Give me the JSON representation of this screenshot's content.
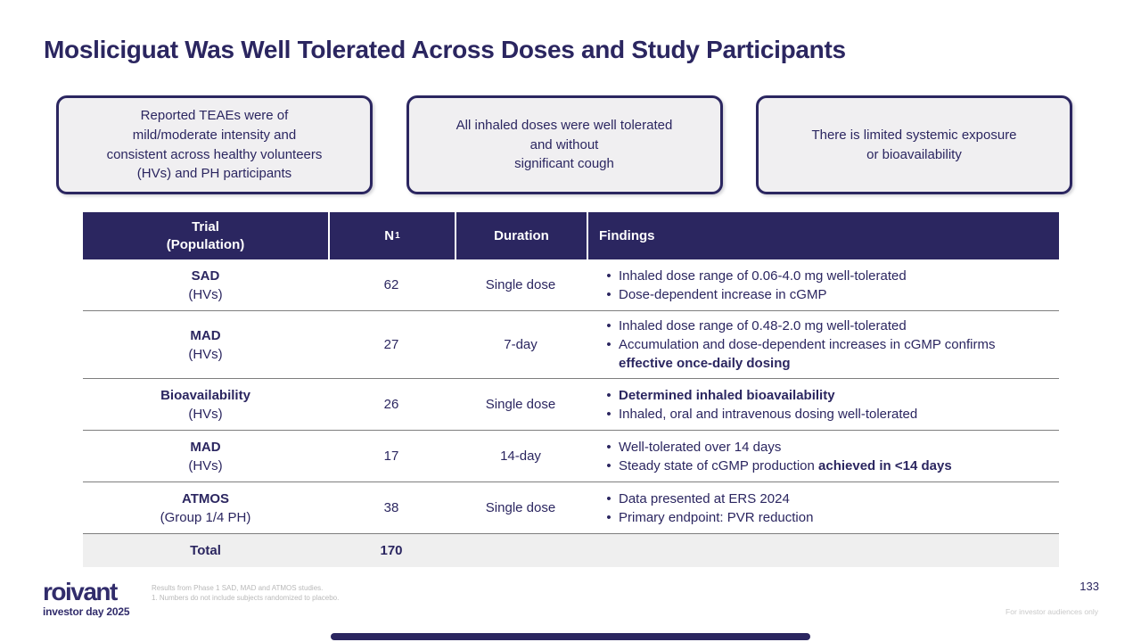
{
  "slide": {
    "title": "Mosliciguat Was Well Tolerated Across Doses and Study Participants",
    "page_number": "133",
    "audience_note": "For investor audiences only"
  },
  "callouts": [
    "Reported TEAEs were of\nmild/moderate intensity and\nconsistent across healthy volunteers\n(HVs) and PH participants",
    "All inhaled doses were well tolerated\nand without\nsignificant cough",
    "There is limited systemic exposure\nor bioavailability"
  ],
  "table": {
    "headers": {
      "trial": "Trial\n(Population)",
      "n": "N",
      "n_superscript": "1",
      "duration": "Duration",
      "findings": "Findings"
    },
    "rows": [
      {
        "trial": "SAD",
        "population": "(HVs)",
        "n": "62",
        "duration": "Single dose",
        "findings": [
          [
            {
              "text": "Inhaled dose range of 0.06-4.0 mg well-tolerated",
              "bold": false
            }
          ],
          [
            {
              "text": "Dose-dependent increase in cGMP",
              "bold": false
            }
          ]
        ]
      },
      {
        "trial": "MAD",
        "population": "(HVs)",
        "n": "27",
        "duration": "7-day",
        "findings": [
          [
            {
              "text": "Inhaled dose range of 0.48-2.0 mg well-tolerated",
              "bold": false
            }
          ],
          [
            {
              "text": "Accumulation and dose-dependent increases in cGMP confirms ",
              "bold": false
            },
            {
              "text": "effective once-daily dosing",
              "bold": true
            }
          ]
        ]
      },
      {
        "trial": "Bioavailability",
        "population": "(HVs)",
        "n": "26",
        "duration": "Single dose",
        "findings": [
          [
            {
              "text": "Determined inhaled bioavailability",
              "bold": true
            }
          ],
          [
            {
              "text": "Inhaled, oral and intravenous dosing well-tolerated",
              "bold": false
            }
          ]
        ]
      },
      {
        "trial": "MAD",
        "population": "(HVs)",
        "n": "17",
        "duration": "14-day",
        "findings": [
          [
            {
              "text": "Well-tolerated over 14 days",
              "bold": false
            }
          ],
          [
            {
              "text": "Steady state of cGMP production ",
              "bold": false
            },
            {
              "text": "achieved in <14 days",
              "bold": true
            }
          ]
        ]
      },
      {
        "trial": "ATMOS",
        "population": "(Group 1/4 PH)",
        "n": "38",
        "duration": "Single dose",
        "findings": [
          [
            {
              "text": "Data presented at ERS 2024",
              "bold": false
            }
          ],
          [
            {
              "text": "Primary endpoint: PVR reduction",
              "bold": false
            }
          ]
        ]
      }
    ],
    "total": {
      "label": "Total",
      "n": "170"
    }
  },
  "footer": {
    "logo_primary": "roivant",
    "logo_secondary": "investor day 2025",
    "footnotes": [
      "Results from Phase 1 SAD, MAD and ATMOS studies.",
      "1. Numbers do not include subjects randomized to placebo."
    ]
  },
  "colors": {
    "navy": "#2b2660",
    "callout_bg": "#f0eff1",
    "total_row_bg": "#efefef",
    "divider_gray": "#7e7e7e",
    "footnote_gray": "#b9b9b9"
  }
}
